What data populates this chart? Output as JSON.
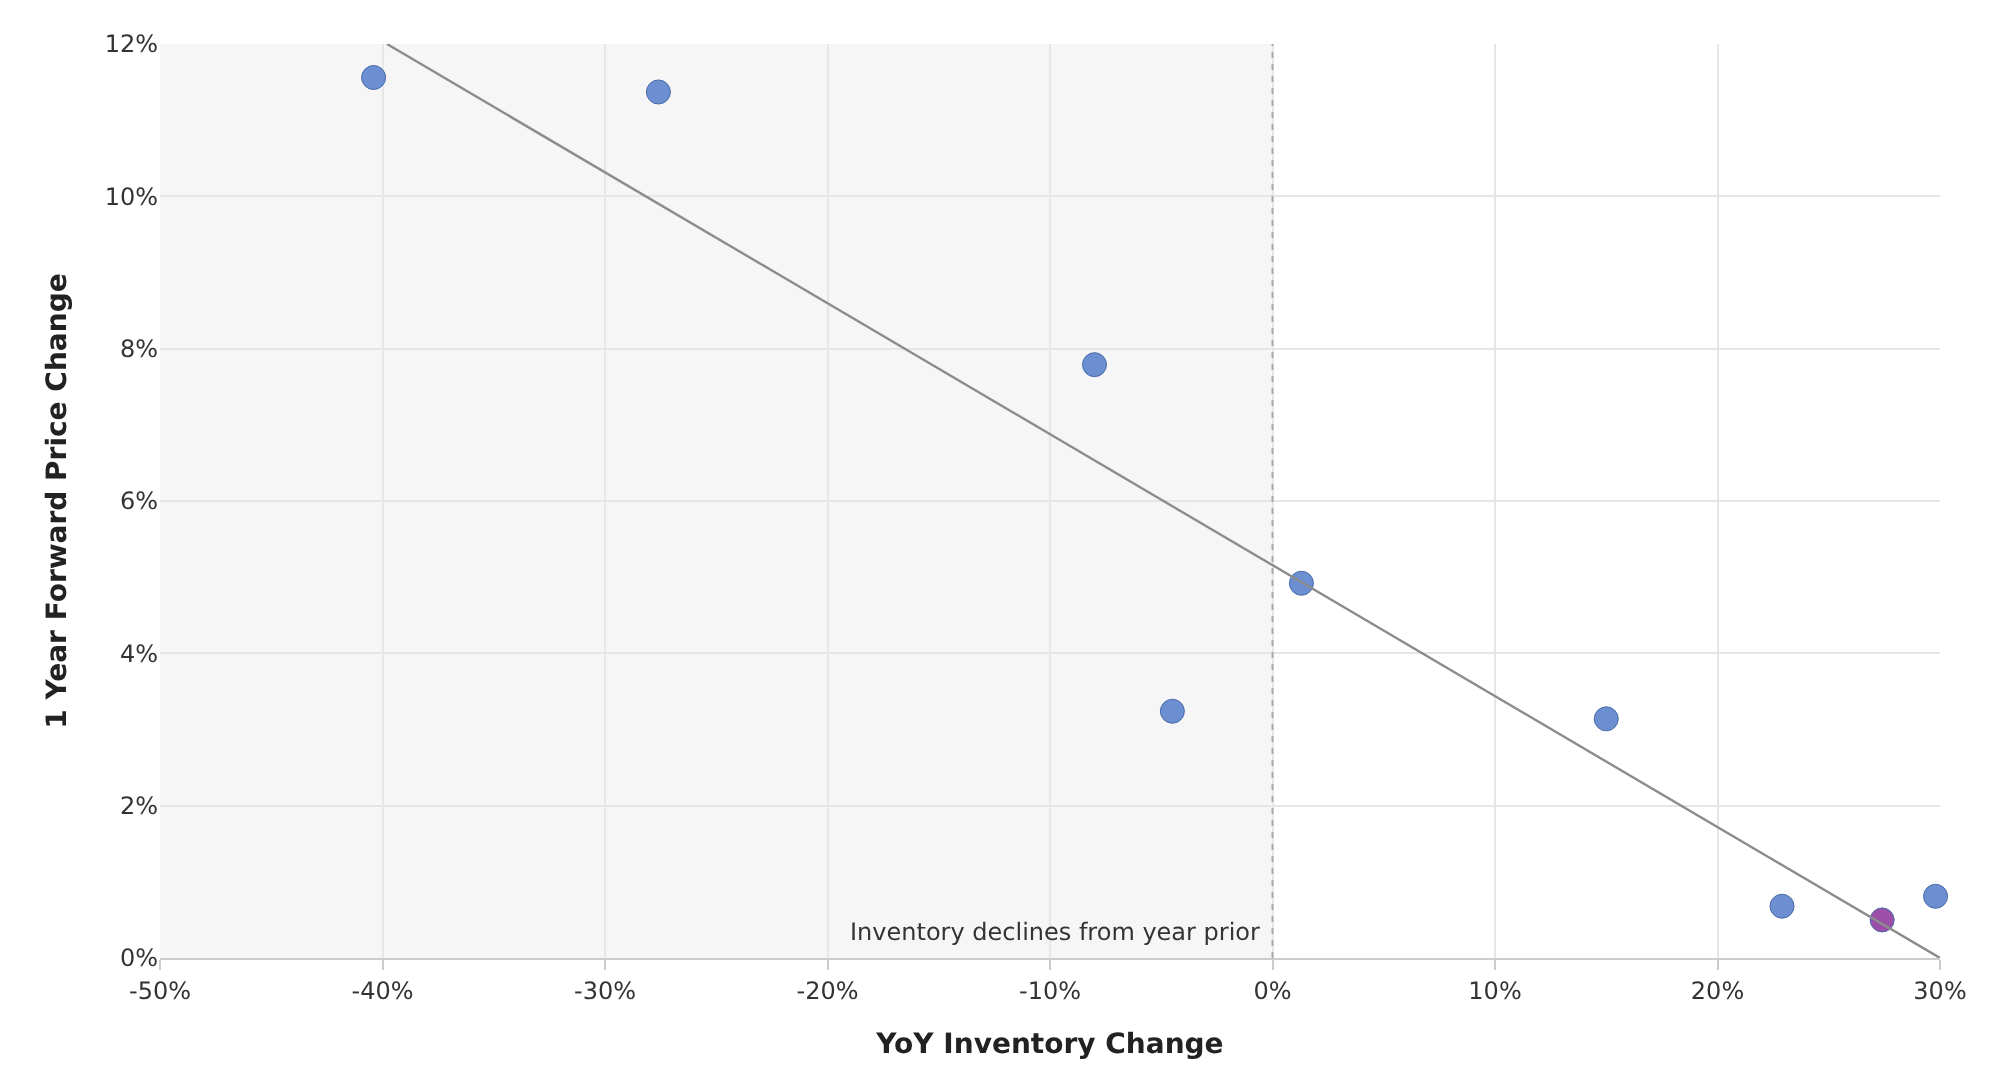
{
  "chart_data": {
    "type": "scatter",
    "xlabel": "YoY Inventory Change",
    "ylabel": "1 Year Forward Price Change",
    "series": [
      {
        "marker": "circle",
        "x": [
          -40.4,
          -27.6,
          -8.0,
          1.3,
          -4.5,
          15.0,
          22.9,
          27.4,
          29.8
        ],
        "values": [
          11.56,
          11.37,
          7.79,
          4.92,
          3.24,
          3.14,
          0.68,
          0.5,
          0.81
        ],
        "colors": [
          "#6b8fd0",
          "#6b8fd0",
          "#6b8fd0",
          "#6b8fd0",
          "#6b8fd0",
          "#6b8fd0",
          "#6b8fd0",
          "#9b4fa8",
          "#6b8fd0"
        ]
      },
      {
        "type": "line",
        "x": [
          -39.8,
          30
        ],
        "values": [
          12,
          0
        ],
        "color": "#8c8c8c",
        "marker": "none"
      }
    ],
    "bands": [
      {
        "axis": "x",
        "from": -50,
        "to": 0,
        "label": "Inventory declines from year prior",
        "color": "#f6f6f6"
      }
    ],
    "ref_lines": [
      {
        "axis": "x",
        "value": 0,
        "color": "#aaaaaa",
        "line_style": "dotted"
      }
    ],
    "xlim": [
      -50,
      30
    ],
    "xticks": [
      {
        "value": -50,
        "label": "-50%"
      },
      {
        "value": -40,
        "label": "-40%"
      },
      {
        "value": -30,
        "label": "-30%"
      },
      {
        "value": -20,
        "label": "-20%"
      },
      {
        "value": -10,
        "label": "-10%"
      },
      {
        "value": 0,
        "label": "0%"
      },
      {
        "value": 10,
        "label": "10%"
      },
      {
        "value": 20,
        "label": "20%"
      },
      {
        "value": 30,
        "label": "30%"
      }
    ],
    "ylim": [
      0,
      12
    ],
    "yticks": [
      {
        "value": 0,
        "label": "0%"
      },
      {
        "value": 2,
        "label": "2%"
      },
      {
        "value": 4,
        "label": "4%"
      },
      {
        "value": 6,
        "label": "6%"
      },
      {
        "value": 8,
        "label": "8%"
      },
      {
        "value": 10,
        "label": "10%"
      },
      {
        "value": 12,
        "label": "12%"
      }
    ],
    "grid": true
  }
}
